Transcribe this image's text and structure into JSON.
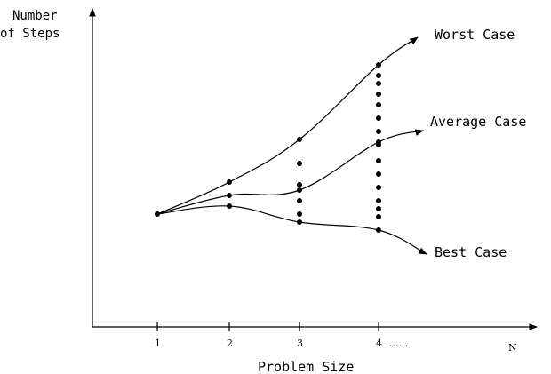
{
  "chart_data": {
    "type": "line",
    "ylabel": "Number\nof Steps",
    "xlabel": "Problem Size",
    "x_axis_end_label": "N",
    "x_ticks": [
      "1",
      "2",
      "3",
      "4"
    ],
    "x_tick_suffix": "......",
    "series": [
      {
        "name": "Worst Case",
        "points": [
          [
            1,
            1.0
          ],
          [
            2,
            2.2
          ],
          [
            3,
            3.8
          ],
          [
            4,
            6.6
          ]
        ]
      },
      {
        "name": "Average Case",
        "points": [
          [
            1,
            1.0
          ],
          [
            2,
            1.7
          ],
          [
            3,
            1.9
          ],
          [
            4,
            3.7
          ]
        ]
      },
      {
        "name": "Best Case",
        "points": [
          [
            1,
            1.0
          ],
          [
            2,
            1.3
          ],
          [
            3,
            0.7
          ],
          [
            4,
            0.4
          ]
        ]
      }
    ],
    "dot_columns": [
      {
        "x": 3,
        "y": [
          1.0,
          1.5,
          2.1,
          2.9,
          3.8
        ]
      },
      {
        "x": 4,
        "y": [
          0.4,
          0.9,
          1.2,
          1.5,
          2.0,
          2.5,
          3.0,
          3.6,
          4.1,
          4.6,
          5.1,
          5.5,
          5.9,
          6.2,
          6.6
        ]
      }
    ],
    "grid": false,
    "legend": "none"
  }
}
